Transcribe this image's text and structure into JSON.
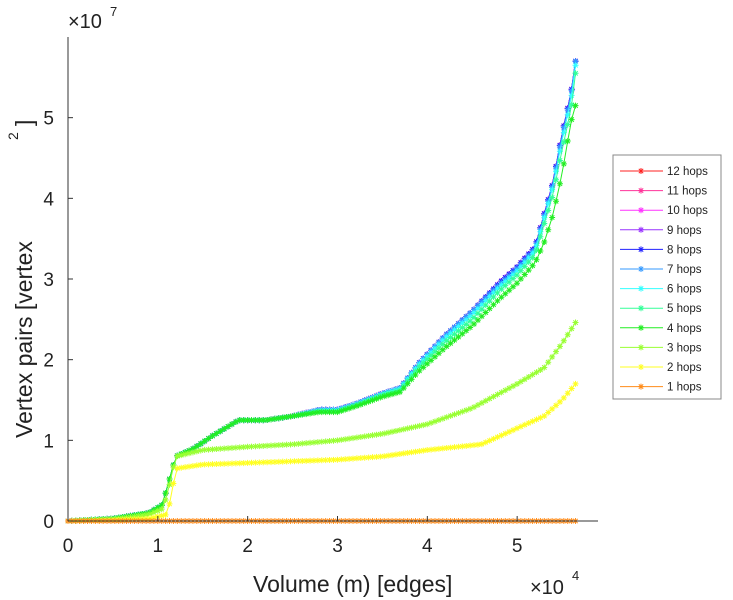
{
  "chart_data": {
    "type": "line",
    "title": "",
    "xlabel": "Volume (m) [edges]",
    "ylabel": "Vertex pairs [vertex",
    "ylabel_sup": "2",
    "ylabel_end": "]",
    "x_multiplier": "×10",
    "x_exponent": "4",
    "y_multiplier": "×10",
    "y_exponent": "7",
    "xlim": [
      0,
      5.9
    ],
    "ylim": [
      0,
      6
    ],
    "xticks": [
      0,
      1,
      2,
      3,
      4,
      5
    ],
    "yticks": [
      0,
      1,
      2,
      3,
      4,
      5
    ],
    "legend_position": "right",
    "series": [
      {
        "name": "12 hops",
        "color": "#ff2020",
        "points": [
          [
            0,
            0
          ],
          [
            0.5,
            0.03
          ],
          [
            0.9,
            0.1
          ],
          [
            1.05,
            0.2
          ],
          [
            1.1,
            0.4
          ],
          [
            1.15,
            0.6
          ],
          [
            1.2,
            0.8
          ],
          [
            1.4,
            0.9
          ],
          [
            1.6,
            1.05
          ],
          [
            1.9,
            1.25
          ],
          [
            2.2,
            1.25
          ],
          [
            2.5,
            1.3
          ],
          [
            2.8,
            1.38
          ],
          [
            3.0,
            1.38
          ],
          [
            3.2,
            1.45
          ],
          [
            3.5,
            1.58
          ],
          [
            3.7,
            1.65
          ],
          [
            3.9,
            1.95
          ],
          [
            4.2,
            2.3
          ],
          [
            4.5,
            2.6
          ],
          [
            4.8,
            2.95
          ],
          [
            5.0,
            3.15
          ],
          [
            5.2,
            3.4
          ],
          [
            5.3,
            3.8
          ],
          [
            5.4,
            4.2
          ],
          [
            5.5,
            4.8
          ],
          [
            5.6,
            5.3
          ],
          [
            5.65,
            5.7
          ]
        ]
      },
      {
        "name": "11 hops",
        "color": "#ff3399",
        "points": [
          [
            0,
            0
          ],
          [
            0.5,
            0.03
          ],
          [
            0.9,
            0.1
          ],
          [
            1.05,
            0.2
          ],
          [
            1.1,
            0.4
          ],
          [
            1.15,
            0.6
          ],
          [
            1.2,
            0.8
          ],
          [
            1.4,
            0.9
          ],
          [
            1.6,
            1.05
          ],
          [
            1.9,
            1.25
          ],
          [
            2.2,
            1.25
          ],
          [
            2.5,
            1.3
          ],
          [
            2.8,
            1.38
          ],
          [
            3.0,
            1.38
          ],
          [
            3.2,
            1.45
          ],
          [
            3.5,
            1.58
          ],
          [
            3.7,
            1.65
          ],
          [
            3.9,
            1.95
          ],
          [
            4.2,
            2.3
          ],
          [
            4.5,
            2.6
          ],
          [
            4.8,
            2.95
          ],
          [
            5.0,
            3.15
          ],
          [
            5.2,
            3.4
          ],
          [
            5.3,
            3.8
          ],
          [
            5.4,
            4.2
          ],
          [
            5.5,
            4.8
          ],
          [
            5.6,
            5.3
          ],
          [
            5.65,
            5.7
          ]
        ]
      },
      {
        "name": "10 hops",
        "color": "#ff33ff",
        "points": [
          [
            0,
            0
          ],
          [
            0.5,
            0.03
          ],
          [
            0.9,
            0.1
          ],
          [
            1.05,
            0.2
          ],
          [
            1.1,
            0.4
          ],
          [
            1.15,
            0.6
          ],
          [
            1.2,
            0.8
          ],
          [
            1.4,
            0.9
          ],
          [
            1.6,
            1.05
          ],
          [
            1.9,
            1.25
          ],
          [
            2.2,
            1.25
          ],
          [
            2.5,
            1.3
          ],
          [
            2.8,
            1.38
          ],
          [
            3.0,
            1.38
          ],
          [
            3.2,
            1.45
          ],
          [
            3.5,
            1.58
          ],
          [
            3.7,
            1.65
          ],
          [
            3.9,
            1.95
          ],
          [
            4.2,
            2.3
          ],
          [
            4.5,
            2.6
          ],
          [
            4.8,
            2.95
          ],
          [
            5.0,
            3.15
          ],
          [
            5.2,
            3.4
          ],
          [
            5.3,
            3.8
          ],
          [
            5.4,
            4.2
          ],
          [
            5.5,
            4.8
          ],
          [
            5.6,
            5.3
          ],
          [
            5.65,
            5.7
          ]
        ]
      },
      {
        "name": "9 hops",
        "color": "#9933ff",
        "points": [
          [
            0,
            0
          ],
          [
            0.5,
            0.03
          ],
          [
            0.9,
            0.1
          ],
          [
            1.05,
            0.2
          ],
          [
            1.1,
            0.4
          ],
          [
            1.15,
            0.6
          ],
          [
            1.2,
            0.8
          ],
          [
            1.4,
            0.9
          ],
          [
            1.6,
            1.05
          ],
          [
            1.9,
            1.25
          ],
          [
            2.2,
            1.25
          ],
          [
            2.5,
            1.3
          ],
          [
            2.8,
            1.38
          ],
          [
            3.0,
            1.38
          ],
          [
            3.2,
            1.45
          ],
          [
            3.5,
            1.58
          ],
          [
            3.7,
            1.65
          ],
          [
            3.9,
            1.95
          ],
          [
            4.2,
            2.3
          ],
          [
            4.5,
            2.6
          ],
          [
            4.8,
            2.95
          ],
          [
            5.0,
            3.15
          ],
          [
            5.2,
            3.4
          ],
          [
            5.3,
            3.8
          ],
          [
            5.4,
            4.2
          ],
          [
            5.5,
            4.8
          ],
          [
            5.6,
            5.3
          ],
          [
            5.65,
            5.7
          ]
        ]
      },
      {
        "name": "8 hops",
        "color": "#2020ff",
        "points": [
          [
            0,
            0
          ],
          [
            0.5,
            0.03
          ],
          [
            0.9,
            0.1
          ],
          [
            1.05,
            0.2
          ],
          [
            1.1,
            0.4
          ],
          [
            1.15,
            0.6
          ],
          [
            1.2,
            0.8
          ],
          [
            1.4,
            0.9
          ],
          [
            1.6,
            1.05
          ],
          [
            1.9,
            1.25
          ],
          [
            2.2,
            1.25
          ],
          [
            2.5,
            1.3
          ],
          [
            2.8,
            1.38
          ],
          [
            3.0,
            1.38
          ],
          [
            3.2,
            1.45
          ],
          [
            3.5,
            1.58
          ],
          [
            3.7,
            1.65
          ],
          [
            3.9,
            1.95
          ],
          [
            4.2,
            2.3
          ],
          [
            4.5,
            2.6
          ],
          [
            4.8,
            2.95
          ],
          [
            5.0,
            3.15
          ],
          [
            5.2,
            3.4
          ],
          [
            5.3,
            3.8
          ],
          [
            5.4,
            4.2
          ],
          [
            5.5,
            4.8
          ],
          [
            5.6,
            5.3
          ],
          [
            5.65,
            5.7
          ]
        ]
      },
      {
        "name": "7 hops",
        "color": "#3399ff",
        "points": [
          [
            0,
            0
          ],
          [
            0.5,
            0.03
          ],
          [
            0.9,
            0.1
          ],
          [
            1.05,
            0.2
          ],
          [
            1.1,
            0.4
          ],
          [
            1.15,
            0.6
          ],
          [
            1.2,
            0.8
          ],
          [
            1.4,
            0.9
          ],
          [
            1.6,
            1.05
          ],
          [
            1.9,
            1.25
          ],
          [
            2.2,
            1.25
          ],
          [
            2.5,
            1.3
          ],
          [
            2.8,
            1.38
          ],
          [
            3.0,
            1.38
          ],
          [
            3.2,
            1.45
          ],
          [
            3.5,
            1.58
          ],
          [
            3.7,
            1.65
          ],
          [
            3.9,
            1.95
          ],
          [
            4.2,
            2.3
          ],
          [
            4.5,
            2.6
          ],
          [
            4.8,
            2.93
          ],
          [
            5.0,
            3.13
          ],
          [
            5.2,
            3.38
          ],
          [
            5.3,
            3.78
          ],
          [
            5.4,
            4.18
          ],
          [
            5.5,
            4.78
          ],
          [
            5.6,
            5.28
          ],
          [
            5.65,
            5.7
          ]
        ]
      },
      {
        "name": "6 hops",
        "color": "#33ffff",
        "points": [
          [
            0,
            0
          ],
          [
            0.5,
            0.03
          ],
          [
            0.9,
            0.1
          ],
          [
            1.05,
            0.2
          ],
          [
            1.1,
            0.4
          ],
          [
            1.15,
            0.6
          ],
          [
            1.2,
            0.8
          ],
          [
            1.4,
            0.9
          ],
          [
            1.6,
            1.05
          ],
          [
            1.9,
            1.25
          ],
          [
            2.2,
            1.25
          ],
          [
            2.5,
            1.3
          ],
          [
            2.8,
            1.37
          ],
          [
            3.0,
            1.37
          ],
          [
            3.2,
            1.44
          ],
          [
            3.5,
            1.57
          ],
          [
            3.7,
            1.64
          ],
          [
            3.9,
            1.93
          ],
          [
            4.2,
            2.27
          ],
          [
            4.5,
            2.56
          ],
          [
            4.8,
            2.9
          ],
          [
            5.0,
            3.1
          ],
          [
            5.2,
            3.35
          ],
          [
            5.3,
            3.75
          ],
          [
            5.4,
            4.15
          ],
          [
            5.5,
            4.72
          ],
          [
            5.6,
            5.22
          ],
          [
            5.65,
            5.65
          ]
        ]
      },
      {
        "name": "5 hops",
        "color": "#33ff99",
        "points": [
          [
            0,
            0
          ],
          [
            0.5,
            0.03
          ],
          [
            0.9,
            0.1
          ],
          [
            1.05,
            0.2
          ],
          [
            1.1,
            0.4
          ],
          [
            1.15,
            0.6
          ],
          [
            1.2,
            0.8
          ],
          [
            1.4,
            0.9
          ],
          [
            1.6,
            1.05
          ],
          [
            1.9,
            1.25
          ],
          [
            2.2,
            1.25
          ],
          [
            2.5,
            1.3
          ],
          [
            2.8,
            1.36
          ],
          [
            3.0,
            1.36
          ],
          [
            3.2,
            1.43
          ],
          [
            3.5,
            1.56
          ],
          [
            3.7,
            1.62
          ],
          [
            3.9,
            1.9
          ],
          [
            4.2,
            2.22
          ],
          [
            4.5,
            2.5
          ],
          [
            4.8,
            2.85
          ],
          [
            5.0,
            3.05
          ],
          [
            5.2,
            3.3
          ],
          [
            5.3,
            3.68
          ],
          [
            5.4,
            4.05
          ],
          [
            5.5,
            4.6
          ],
          [
            5.6,
            5.1
          ],
          [
            5.65,
            5.55
          ]
        ]
      },
      {
        "name": "4 hops",
        "color": "#22ee22",
        "points": [
          [
            0,
            0
          ],
          [
            0.5,
            0.03
          ],
          [
            0.9,
            0.1
          ],
          [
            1.05,
            0.2
          ],
          [
            1.1,
            0.4
          ],
          [
            1.15,
            0.6
          ],
          [
            1.2,
            0.8
          ],
          [
            1.4,
            0.9
          ],
          [
            1.6,
            1.05
          ],
          [
            1.9,
            1.25
          ],
          [
            2.2,
            1.25
          ],
          [
            2.5,
            1.3
          ],
          [
            2.8,
            1.35
          ],
          [
            3.0,
            1.35
          ],
          [
            3.2,
            1.42
          ],
          [
            3.5,
            1.54
          ],
          [
            3.7,
            1.6
          ],
          [
            3.9,
            1.85
          ],
          [
            4.2,
            2.15
          ],
          [
            4.5,
            2.42
          ],
          [
            4.8,
            2.75
          ],
          [
            5.0,
            2.95
          ],
          [
            5.2,
            3.2
          ],
          [
            5.3,
            3.45
          ],
          [
            5.4,
            3.8
          ],
          [
            5.5,
            4.3
          ],
          [
            5.6,
            4.95
          ],
          [
            5.65,
            5.15
          ]
        ]
      },
      {
        "name": "3 hops",
        "color": "#99ff33",
        "points": [
          [
            0,
            0
          ],
          [
            0.5,
            0.02
          ],
          [
            0.9,
            0.08
          ],
          [
            1.05,
            0.15
          ],
          [
            1.1,
            0.3
          ],
          [
            1.15,
            0.55
          ],
          [
            1.2,
            0.8
          ],
          [
            1.5,
            0.88
          ],
          [
            2.0,
            0.92
          ],
          [
            2.5,
            0.95
          ],
          [
            3.0,
            1.0
          ],
          [
            3.5,
            1.08
          ],
          [
            4.0,
            1.2
          ],
          [
            4.5,
            1.4
          ],
          [
            5.0,
            1.7
          ],
          [
            5.3,
            1.9
          ],
          [
            5.5,
            2.2
          ],
          [
            5.65,
            2.46
          ]
        ]
      },
      {
        "name": "2 hops",
        "color": "#ffff22",
        "points": [
          [
            0,
            0
          ],
          [
            0.5,
            0.01
          ],
          [
            0.9,
            0.03
          ],
          [
            1.1,
            0.08
          ],
          [
            1.15,
            0.3
          ],
          [
            1.2,
            0.65
          ],
          [
            1.5,
            0.7
          ],
          [
            2.0,
            0.72
          ],
          [
            2.5,
            0.74
          ],
          [
            3.0,
            0.76
          ],
          [
            3.5,
            0.8
          ],
          [
            4.0,
            0.88
          ],
          [
            4.6,
            0.95
          ],
          [
            5.0,
            1.15
          ],
          [
            5.3,
            1.3
          ],
          [
            5.5,
            1.5
          ],
          [
            5.65,
            1.7
          ]
        ]
      },
      {
        "name": "1 hops",
        "color": "#ff8c1a",
        "points": [
          [
            0,
            0
          ],
          [
            5.65,
            0
          ]
        ]
      }
    ]
  }
}
